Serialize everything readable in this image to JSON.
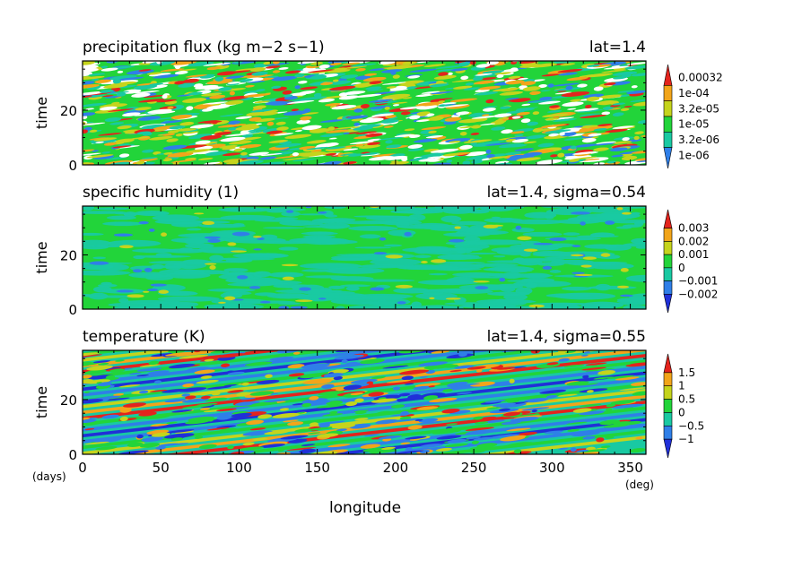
{
  "chart_data": [
    {
      "type": "heatmap",
      "title": "precipitation flux (kg m−2 s−1)",
      "subtitle": "lat=1.4",
      "ylabel": "time",
      "yticks": [
        "0",
        "20"
      ],
      "ylim": [
        0,
        38
      ],
      "xlim": [
        0,
        360
      ],
      "colorbar": {
        "labels": [
          "0.00032",
          "1e-04",
          "3.2e-05",
          "1e-05",
          "3.2e-06",
          "1e-06"
        ],
        "colors": [
          "#2f7fe8",
          "#19c9a2",
          "#22d43a",
          "#c5d41c",
          "#f2a51a",
          "#e3241d"
        ]
      }
    },
    {
      "type": "heatmap",
      "title": "specific humidity (1)",
      "subtitle": "lat=1.4, sigma=0.54",
      "ylabel": "time",
      "yticks": [
        "0",
        "20"
      ],
      "ylim": [
        0,
        38
      ],
      "xlim": [
        0,
        360
      ],
      "colorbar": {
        "labels": [
          "0.003",
          "0.002",
          "0.001",
          "0",
          "−0.001",
          "−0.002"
        ],
        "colors": [
          "#2030d8",
          "#2f7fe8",
          "#19c9a2",
          "#22d43a",
          "#c5d41c",
          "#f2a51a",
          "#e3241d"
        ]
      }
    },
    {
      "type": "heatmap",
      "title": "temperature (K)",
      "subtitle": "lat=1.4, sigma=0.55",
      "ylabel": "time",
      "yticks": [
        "0",
        "20"
      ],
      "ylim": [
        0,
        38
      ],
      "xlim": [
        0,
        360
      ],
      "colorbar": {
        "labels": [
          "1.5",
          "1",
          "0.5",
          "0",
          "−0.5",
          "−1"
        ],
        "colors": [
          "#2030d8",
          "#2f7fe8",
          "#19c9a2",
          "#22d43a",
          "#c5d41c",
          "#f2a51a",
          "#e3241d"
        ]
      }
    }
  ],
  "axis": {
    "xlabel": "longitude",
    "xticks": [
      "0",
      "50",
      "100",
      "150",
      "200",
      "250",
      "300",
      "350"
    ],
    "x_unit": "(deg)",
    "y_unit": "(days)"
  }
}
